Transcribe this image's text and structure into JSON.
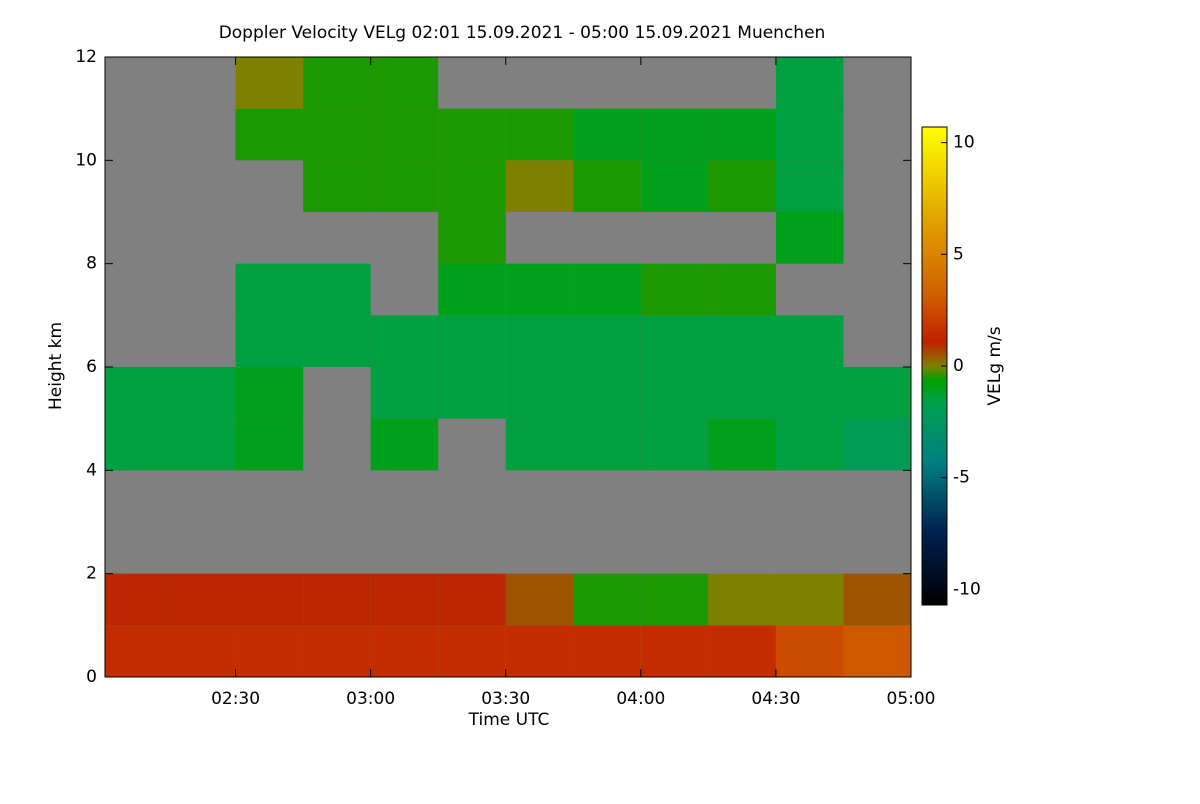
{
  "chart_data": {
    "type": "heatmap",
    "title": "Doppler Velocity VELg   02:01 15.09.2021 - 05:00 15.09.2021 Muenchen",
    "x_label": "Time UTC",
    "y_label": "Height km",
    "colorbar_label": "VELg m/s",
    "xlim": [
      2.0167,
      5.0
    ],
    "xticks": [
      {
        "value": 2.5,
        "label": "02:30"
      },
      {
        "value": 3.0,
        "label": "03:00"
      },
      {
        "value": 3.5,
        "label": "03:30"
      },
      {
        "value": 4.0,
        "label": "04:00"
      },
      {
        "value": 4.5,
        "label": "04:30"
      },
      {
        "value": 5.0,
        "label": "05:00"
      }
    ],
    "ylim": [
      0,
      12
    ],
    "yticks": [
      0,
      2,
      4,
      6,
      8,
      10,
      12
    ],
    "x_bins": [
      2.0,
      2.25,
      2.5,
      2.75,
      3.0,
      3.25,
      3.5,
      3.75,
      4.0,
      4.25,
      4.5,
      4.75,
      5.0
    ],
    "y_bins": [
      0,
      1,
      2,
      3,
      4,
      5,
      6,
      7,
      8,
      9,
      10,
      11,
      12
    ],
    "values": [
      [
        1.5,
        1.5,
        1.5,
        1.5,
        1.5,
        1.5,
        1.5,
        1.5,
        1.5,
        1.5,
        2.5,
        3
      ],
      [
        1,
        1,
        1,
        1,
        1,
        1,
        0.5,
        -0.5,
        -0.5,
        0,
        0,
        0.5
      ],
      [
        null,
        null,
        null,
        null,
        null,
        null,
        null,
        null,
        null,
        null,
        null,
        null
      ],
      [
        null,
        null,
        null,
        null,
        null,
        null,
        null,
        null,
        null,
        null,
        null,
        null
      ],
      [
        -1.5,
        -1.5,
        -1,
        null,
        -1,
        null,
        -1.5,
        -1.5,
        -1.5,
        -1,
        -1.5,
        -2
      ],
      [
        -1.5,
        -1.5,
        -1,
        null,
        -1.5,
        -1.5,
        -1.5,
        -1.5,
        -1.5,
        -1.5,
        -1.5,
        -1.5
      ],
      [
        null,
        null,
        -1.5,
        -1.5,
        -1.5,
        -1.5,
        -1.5,
        -1.5,
        -1.5,
        -1.5,
        -1.5,
        null
      ],
      [
        null,
        null,
        -1.5,
        -1.5,
        null,
        -1,
        -1,
        -1,
        -0.5,
        -0.5,
        null,
        null
      ],
      [
        null,
        null,
        null,
        null,
        null,
        -0.5,
        null,
        null,
        null,
        null,
        -1,
        null
      ],
      [
        null,
        null,
        null,
        -0.5,
        -0.5,
        -0.5,
        0,
        -0.5,
        -1,
        -0.5,
        -1.5,
        null
      ],
      [
        null,
        null,
        -0.5,
        -0.5,
        -0.5,
        -0.5,
        -0.5,
        -1,
        -1,
        -1,
        -1.5,
        null
      ],
      [
        null,
        null,
        0,
        -0.5,
        -0.5,
        null,
        null,
        null,
        null,
        null,
        -1.5,
        null
      ]
    ],
    "clim": [
      -10.7,
      10.7
    ],
    "cticks": [
      -10,
      -5,
      0,
      5,
      10
    ],
    "colormap": [
      "#000000",
      "#002050",
      "#008080",
      "#00a050",
      "#00a000",
      "#808000",
      "#c02000",
      "#d06000",
      "#e0a000",
      "#ffff00"
    ],
    "colormap_stops": [
      0,
      0.15,
      0.3,
      0.42,
      0.47,
      0.5,
      0.55,
      0.65,
      0.8,
      1
    ],
    "background": "#808080"
  }
}
